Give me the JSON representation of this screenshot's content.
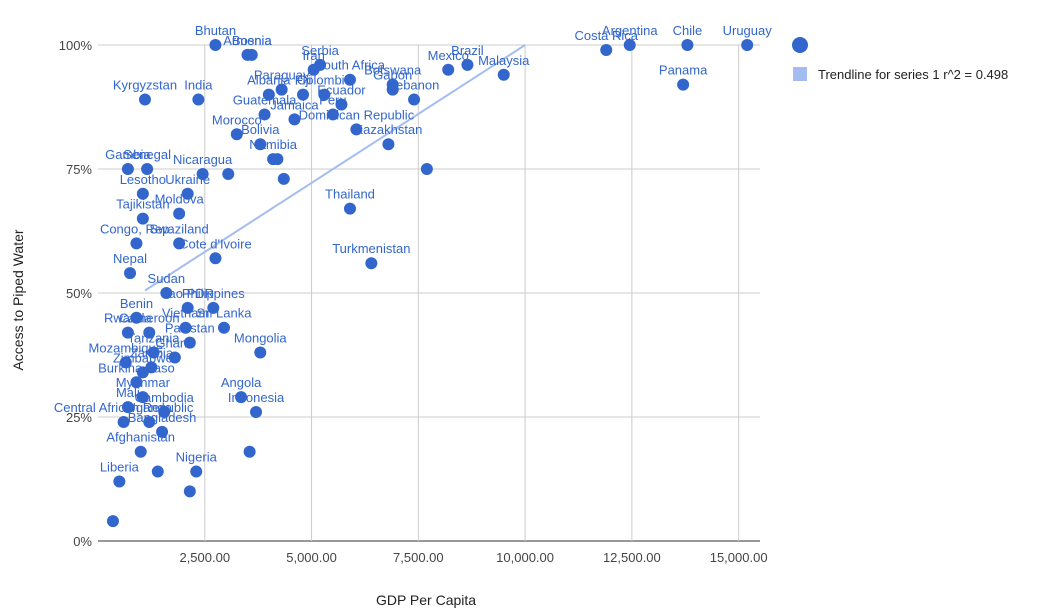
{
  "chart_data": {
    "type": "scatter",
    "title": "",
    "xlabel": "GDP Per Capita",
    "ylabel": "Access to Piped Water",
    "xlim": [
      0,
      15500
    ],
    "ylim": [
      0,
      100
    ],
    "x_ticks": [
      2500,
      5000,
      7500,
      10000,
      12500,
      15000
    ],
    "x_tick_labels": [
      "2,500.00",
      "5,000.00",
      "7,500.00",
      "10,000.00",
      "12,500.00",
      "15,000.00"
    ],
    "y_ticks": [
      0,
      25,
      50,
      75,
      100
    ],
    "y_tick_labels": [
      "0%",
      "25%",
      "50%",
      "75%",
      "100%"
    ],
    "grid": true,
    "legend_position": "right",
    "colors": {
      "series": "#3366cc",
      "trendline": "#a4bdf1",
      "grid": "#cccccc",
      "baseline": "#333333"
    },
    "legend": [
      {
        "label": "",
        "marker": "circle"
      },
      {
        "label": "Trendline for series 1 r^2 = 0.498",
        "marker": "square"
      }
    ],
    "trendline": {
      "start": [
        1100,
        50.5
      ],
      "end": [
        10000,
        100
      ]
    },
    "points": [
      {
        "label": "Bhutan",
        "x": 2750,
        "y": 100
      },
      {
        "label": "Armenia",
        "x": 3500,
        "y": 98
      },
      {
        "label": "Costa Rica",
        "x": 11900,
        "y": 99
      },
      {
        "label": "Argentina",
        "x": 12450,
        "y": 100
      },
      {
        "label": "Chile",
        "x": 13800,
        "y": 100
      },
      {
        "label": "Uruguay",
        "x": 15200,
        "y": 100
      },
      {
        "label": "Panama",
        "x": 13700,
        "y": 92
      },
      {
        "label": "Serbia",
        "x": 5200,
        "y": 96
      },
      {
        "label": "Iran",
        "x": 5050,
        "y": 95
      },
      {
        "label": "Brazil",
        "x": 8650,
        "y": 96
      },
      {
        "label": "Mexico",
        "x": 8200,
        "y": 95
      },
      {
        "label": "Malaysia",
        "x": 9500,
        "y": 94
      },
      {
        "label": "South Africa",
        "x": 5900,
        "y": 93
      },
      {
        "label": "Botswana",
        "x": 6900,
        "y": 92
      },
      {
        "label": "Kyrgyzstan",
        "x": 1100,
        "y": 89
      },
      {
        "label": "India",
        "x": 2350,
        "y": 89
      },
      {
        "label": "Bosnia",
        "x": 3600,
        "y": 98
      },
      {
        "label": "Paraguay",
        "x": 4300,
        "y": 91
      },
      {
        "label": "Albania",
        "x": 4000,
        "y": 90
      },
      {
        "label": "Fiji",
        "x": 4800,
        "y": 90
      },
      {
        "label": "Colombia",
        "x": 5300,
        "y": 90
      },
      {
        "label": "Ecuador",
        "x": 5700,
        "y": 88
      },
      {
        "label": "Gabon",
        "x": 6900,
        "y": 91
      },
      {
        "label": "Lebanon",
        "x": 7400,
        "y": 89
      },
      {
        "label": "Peru",
        "x": 5500,
        "y": 86
      },
      {
        "label": "Jamaica",
        "x": 4600,
        "y": 85
      },
      {
        "label": "Dominican Republic",
        "x": 6050,
        "y": 83
      },
      {
        "label": "Guatemala",
        "x": 3900,
        "y": 86
      },
      {
        "label": "Morocco",
        "x": 3250,
        "y": 82
      },
      {
        "label": "Bolivia",
        "x": 3800,
        "y": 80
      },
      {
        "label": "Namibia",
        "x": 4100,
        "y": 77
      },
      {
        "label": "Kazakhstan",
        "x": 6800,
        "y": 80
      },
      {
        "label": "Gambia",
        "x": 700,
        "y": 75
      },
      {
        "label": "Senegal",
        "x": 1150,
        "y": 75
      },
      {
        "label": "Nicaragua",
        "x": 2450,
        "y": 74
      },
      {
        "label": "Lesotho",
        "x": 1050,
        "y": 70
      },
      {
        "label": "Ukraine",
        "x": 2100,
        "y": 70
      },
      {
        "label": "Thailand",
        "x": 5900,
        "y": 67
      },
      {
        "label": "Tajikistan",
        "x": 1050,
        "y": 65
      },
      {
        "label": "Moldova",
        "x": 1900,
        "y": 66
      },
      {
        "label": "Congo, Rep.",
        "x": 900,
        "y": 60
      },
      {
        "label": "Swaziland",
        "x": 1900,
        "y": 60
      },
      {
        "label": "Turkmenistan",
        "x": 6400,
        "y": 56
      },
      {
        "label": "Cote d'Ivoire",
        "x": 2750,
        "y": 57
      },
      {
        "label": "Nepal",
        "x": 750,
        "y": 54
      },
      {
        "label": "Sudan",
        "x": 1600,
        "y": 50
      },
      {
        "label": "Lao PDR",
        "x": 2100,
        "y": 47
      },
      {
        "label": "Philippines",
        "x": 2700,
        "y": 47
      },
      {
        "label": "Benin",
        "x": 900,
        "y": 45
      },
      {
        "label": "Rwanda",
        "x": 700,
        "y": 42
      },
      {
        "label": "Cameroon",
        "x": 1200,
        "y": 42
      },
      {
        "label": "Vietnam",
        "x": 2050,
        "y": 43
      },
      {
        "label": "Sri Lanka",
        "x": 2950,
        "y": 43
      },
      {
        "label": "Tanzania",
        "x": 1300,
        "y": 38
      },
      {
        "label": "Pakistan",
        "x": 2150,
        "y": 40
      },
      {
        "label": "Mozambique",
        "x": 650,
        "y": 36
      },
      {
        "label": "Ghana",
        "x": 1800,
        "y": 37
      },
      {
        "label": "Zambia",
        "x": 1250,
        "y": 35
      },
      {
        "label": "Zimbabwe",
        "x": 1050,
        "y": 34
      },
      {
        "label": "Burkina Faso",
        "x": 900,
        "y": 32
      },
      {
        "label": "Mongolia",
        "x": 3800,
        "y": 38
      },
      {
        "label": "Angola",
        "x": 3350,
        "y": 29
      },
      {
        "label": "Myanmar",
        "x": 1050,
        "y": 29
      },
      {
        "label": "Mali",
        "x": 700,
        "y": 27
      },
      {
        "label": "Cambodia",
        "x": 1550,
        "y": 26
      },
      {
        "label": "Indonesia",
        "x": 3700,
        "y": 26
      },
      {
        "label": "Central African Republic",
        "x": 600,
        "y": 24
      },
      {
        "label": "Uganda",
        "x": 1200,
        "y": 24
      },
      {
        "label": "Bangladesh",
        "x": 1500,
        "y": 22
      },
      {
        "label": "Afghanistan",
        "x": 1000,
        "y": 18
      },
      {
        "label": "Nigeria",
        "x": 2300,
        "y": 14
      },
      {
        "label": "Liberia",
        "x": 500,
        "y": 12
      },
      {
        "label": "",
        "x": 1400,
        "y": 14
      },
      {
        "label": "",
        "x": 2150,
        "y": 10
      },
      {
        "label": "",
        "x": 3550,
        "y": 18
      },
      {
        "label": "",
        "x": 7700,
        "y": 75
      },
      {
        "label": "",
        "x": 4350,
        "y": 73
      },
      {
        "label": "",
        "x": 3050,
        "y": 74
      },
      {
        "label": "",
        "x": 350,
        "y": 4
      },
      {
        "label": "",
        "x": 4200,
        "y": 77
      }
    ]
  }
}
